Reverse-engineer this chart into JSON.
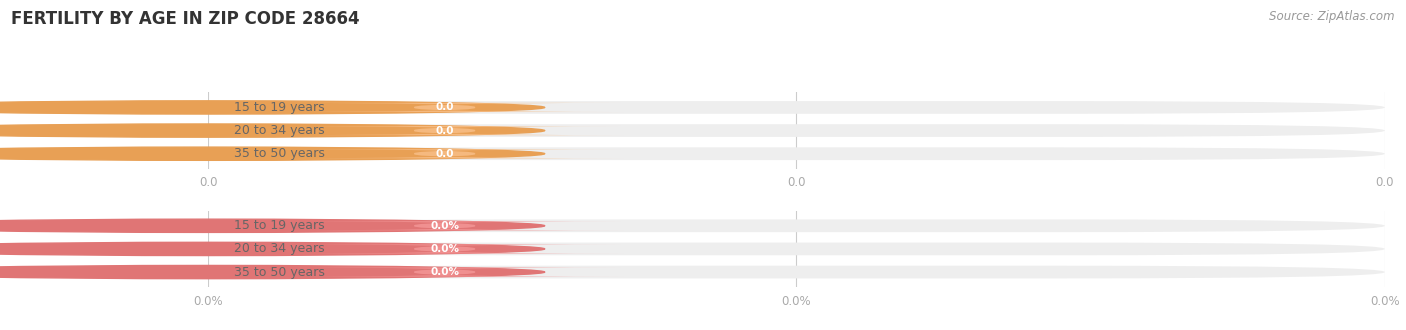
{
  "title": "FERTILITY BY AGE IN ZIP CODE 28664",
  "source_text": "Source: ZipAtlas.com",
  "categories": [
    "15 to 19 years",
    "20 to 34 years",
    "35 to 50 years"
  ],
  "values_count": [
    0.0,
    0.0,
    0.0
  ],
  "values_pct": [
    0.0,
    0.0,
    0.0
  ],
  "bar_bg_color": "#eeeeee",
  "bar_fill_orange": "#f5b97f",
  "bar_fill_pink": "#f09090",
  "circle_orange": "#e8a055",
  "circle_pink": "#e07575",
  "label_color": "#555555",
  "title_color": "#333333",
  "source_color": "#999999",
  "bg_color": "#ffffff",
  "xtick_labels_count": [
    "0.0",
    "0.0",
    "0.0"
  ],
  "xtick_labels_pct": [
    "0.0%",
    "0.0%",
    "0.0%"
  ],
  "grid_color": "#cccccc",
  "label_text_color": "#666666"
}
